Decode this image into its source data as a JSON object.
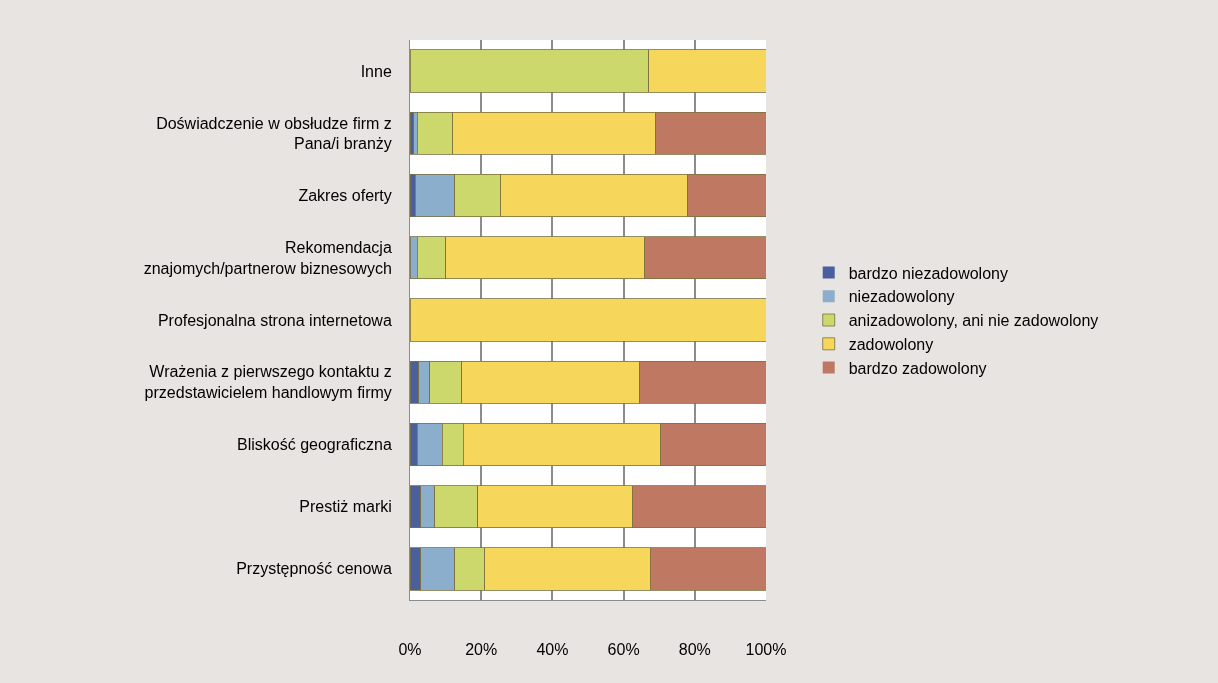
{
  "chart_data": {
    "type": "bar",
    "orientation": "horizontal",
    "stacked": true,
    "categories": [
      "Inne",
      "Doświadczenie w obsłudze firm z\nPana/i branży",
      "Zakres oferty",
      "Rekomendacja\nznajomych/partnerow biznesowych",
      "Profesjonalna strona internetowa",
      "Wrażenia z pierwszego kontaktu z\nprzedstawicielem handlowym firmy",
      "Bliskość geograficzna",
      "Prestiż marki",
      "Przystępność cenowa"
    ],
    "series": [
      {
        "name": "bardzo niezadowolony",
        "color": "#4a5f9e",
        "values": [
          null,
          1,
          1.5,
          null,
          null,
          2.5,
          2,
          3,
          3
        ]
      },
      {
        "name": "niezadowolony",
        "color": "#8aaecb",
        "values": [
          null,
          1,
          11,
          2,
          null,
          3,
          7,
          4,
          9.5
        ]
      },
      {
        "name": "anizadowolony, ani nie zadowolony",
        "color": "#cdd86c",
        "values": [
          67,
          10,
          13,
          8,
          null,
          9,
          6,
          12,
          8.5
        ]
      },
      {
        "name": "zadowolony",
        "color": "#f7d65c",
        "values": [
          33,
          57,
          52.5,
          56,
          100,
          50,
          55.5,
          43.5,
          46.5
        ]
      },
      {
        "name": "bardzo zadowolony",
        "color": "#bf7862",
        "values": [
          null,
          31,
          22,
          34,
          null,
          35.5,
          29.5,
          37.5,
          32.5
        ]
      }
    ],
    "xlim": [
      0,
      100
    ],
    "xticks": [
      {
        "value": 0,
        "label": "0%"
      },
      {
        "value": 20,
        "label": "20%"
      },
      {
        "value": 40,
        "label": "40%"
      },
      {
        "value": 60,
        "label": "60%"
      },
      {
        "value": 80,
        "label": "80%"
      },
      {
        "value": 100,
        "label": "100%"
      }
    ],
    "grid": "x",
    "legend": "right"
  }
}
